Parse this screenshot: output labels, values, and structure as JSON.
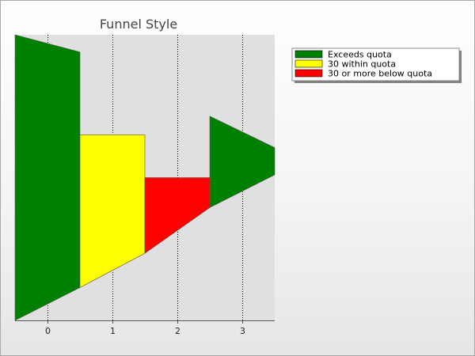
{
  "chart_data": {
    "type": "funnel",
    "title": "Funnel Style",
    "xlabel": "",
    "ylabel": "",
    "x_ticks": [
      "0",
      "1",
      "2",
      "3"
    ],
    "xlim": [
      -0.5,
      3.5
    ],
    "ylim": [
      -1.0,
      1.0
    ],
    "grid": true,
    "legend_position": "top-right",
    "series": [
      {
        "name": "Exceeds quota",
        "color": "#008000",
        "segments": [
          {
            "x_start": -0.5,
            "x_end": 0.5,
            "top": [
              1.0,
              0.88
            ],
            "bottom": [
              -1.0,
              -0.77
            ]
          },
          {
            "x_start": 2.5,
            "x_end": 3.5,
            "top": [
              0.43,
              0.21
            ],
            "bottom": [
              -0.21,
              0.02
            ]
          }
        ]
      },
      {
        "name": "30 within quota",
        "color": "#ffff00",
        "segments": [
          {
            "x_start": 0.5,
            "x_end": 1.5,
            "top": [
              0.3,
              0.3
            ],
            "bottom": [
              -0.77,
              -0.53
            ]
          }
        ]
      },
      {
        "name": "30 or more below quota",
        "color": "#ff0000",
        "segments": [
          {
            "x_start": 1.5,
            "x_end": 2.5,
            "top": [
              0.0,
              0.0
            ],
            "bottom": [
              -0.53,
              -0.21
            ]
          }
        ]
      }
    ]
  }
}
